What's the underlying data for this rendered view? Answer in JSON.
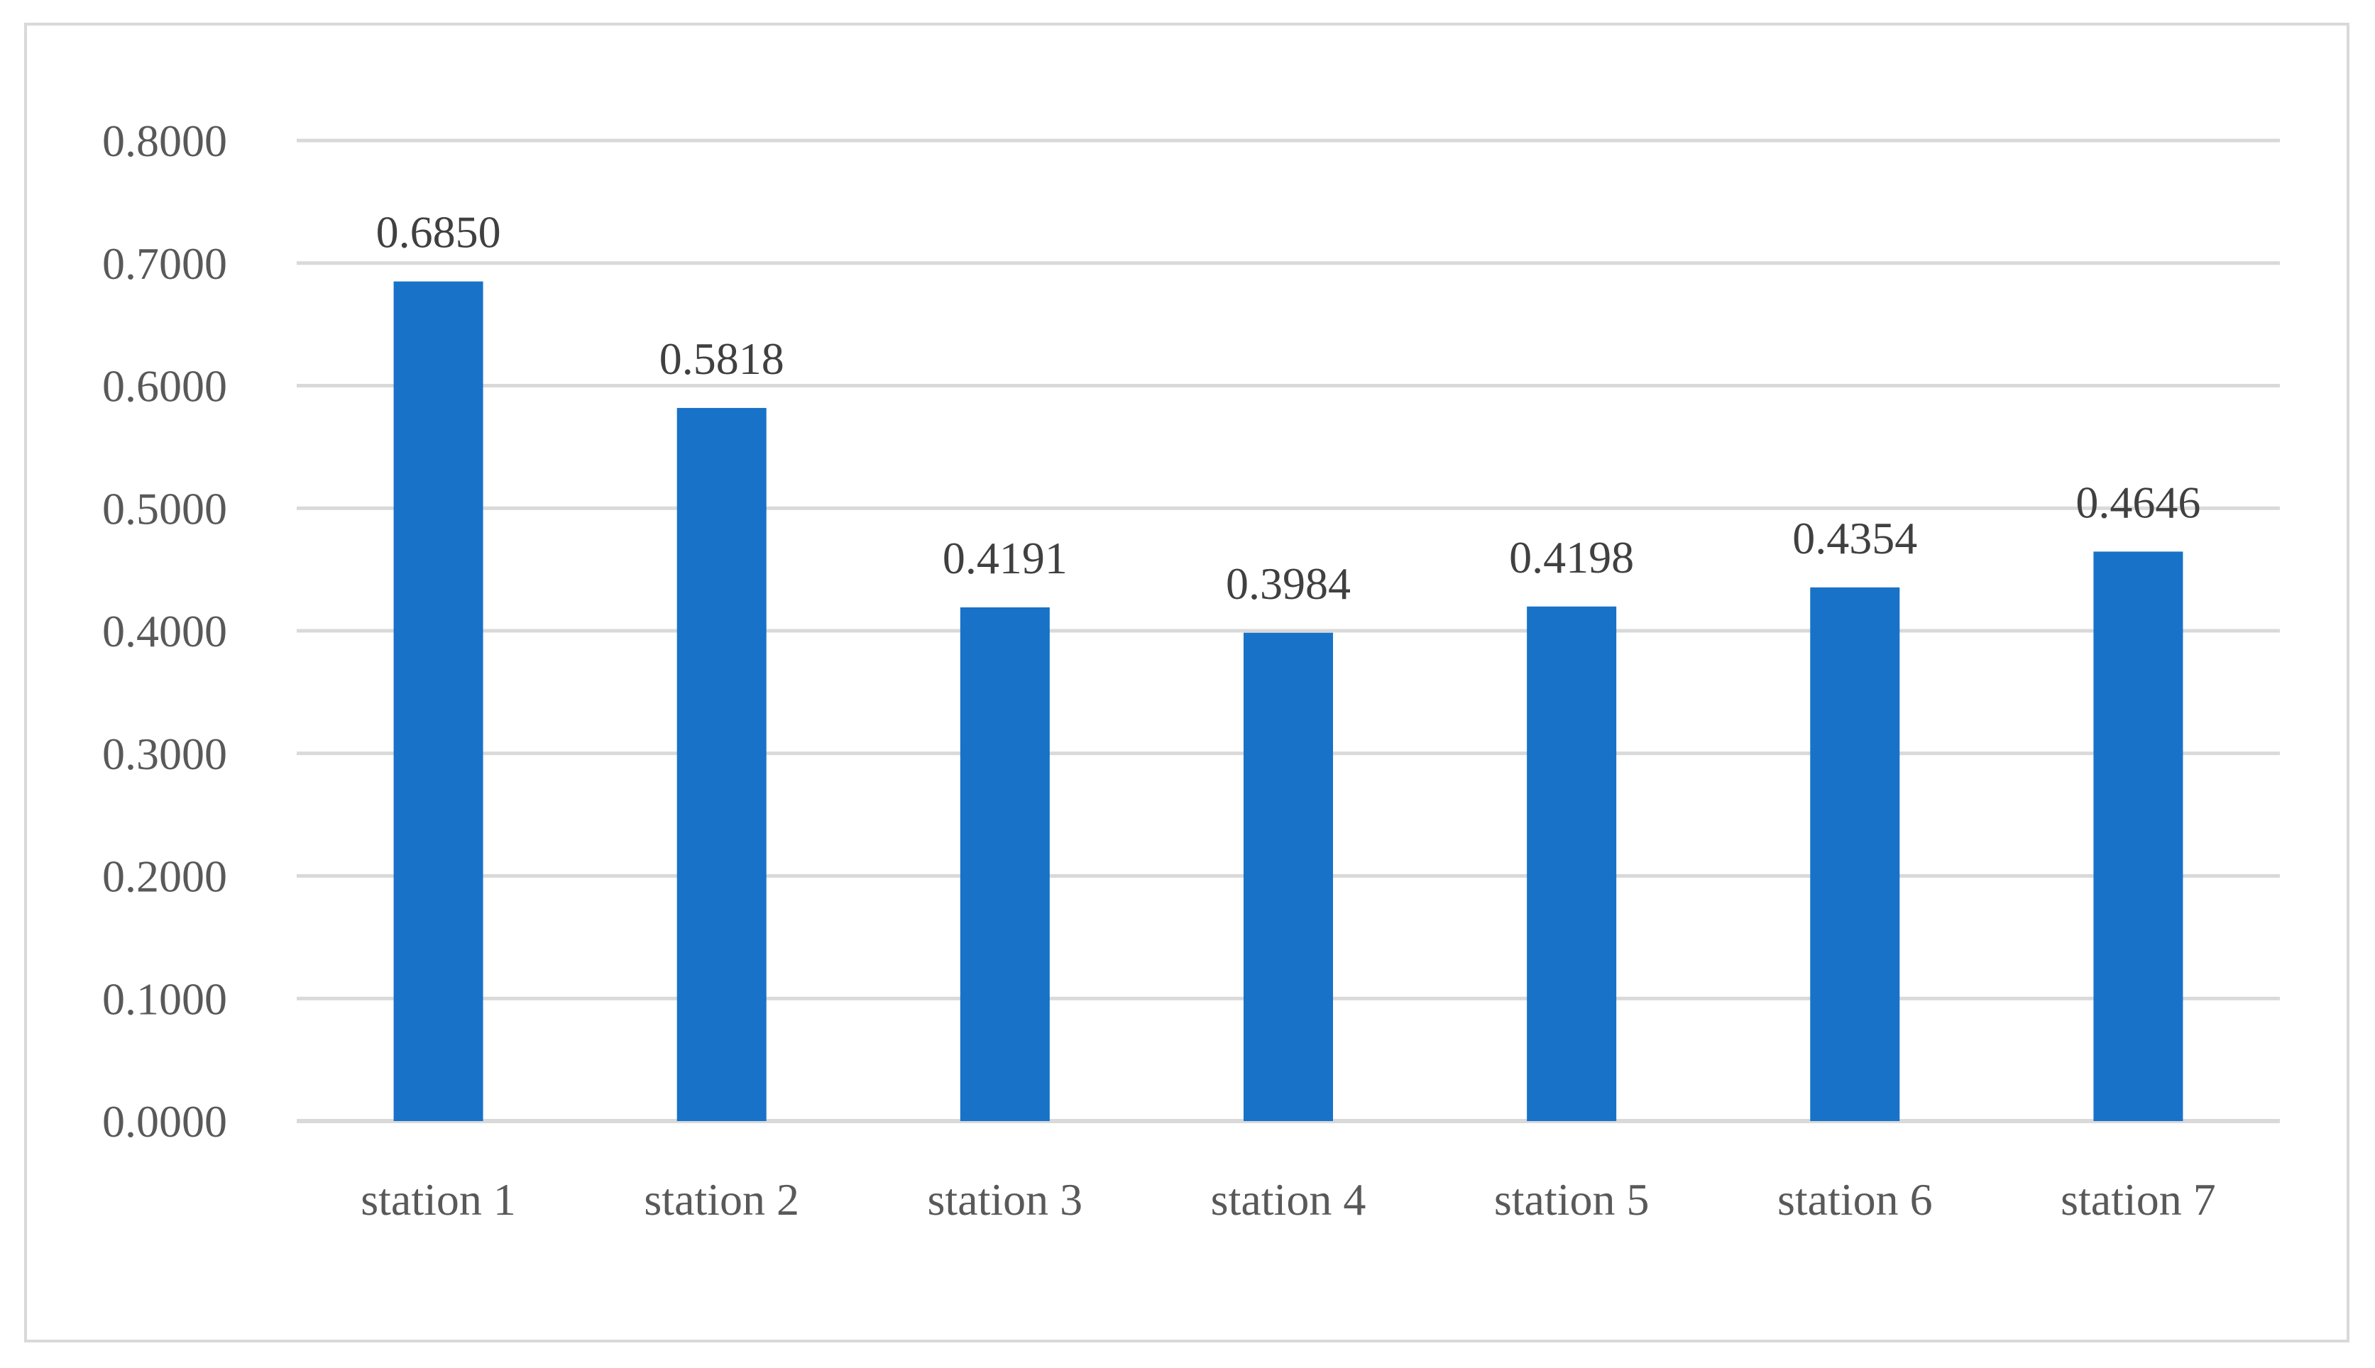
{
  "chart_data": {
    "type": "bar",
    "title": "",
    "xlabel": "",
    "ylabel": "",
    "categories": [
      "station 1",
      "station 2",
      "station 3",
      "station 4",
      "station 5",
      "station 6",
      "station 7"
    ],
    "values": [
      0.685,
      0.5818,
      0.4191,
      0.3984,
      0.4198,
      0.4354,
      0.4646
    ],
    "data_labels": [
      "0.6850",
      "0.5818",
      "0.4191",
      "0.3984",
      "0.4198",
      "0.4354",
      "0.4646"
    ],
    "ylim": [
      0,
      0.8
    ],
    "yticks": [
      0,
      0.1,
      0.2,
      0.3,
      0.4,
      0.5,
      0.6,
      0.7,
      0.8
    ],
    "ytick_labels": [
      "0.0000",
      "0.1000",
      "0.2000",
      "0.3000",
      "0.4000",
      "0.5000",
      "0.6000",
      "0.7000",
      "0.8000"
    ],
    "grid": true,
    "legend": "none",
    "bar_color": "#1772c8"
  }
}
